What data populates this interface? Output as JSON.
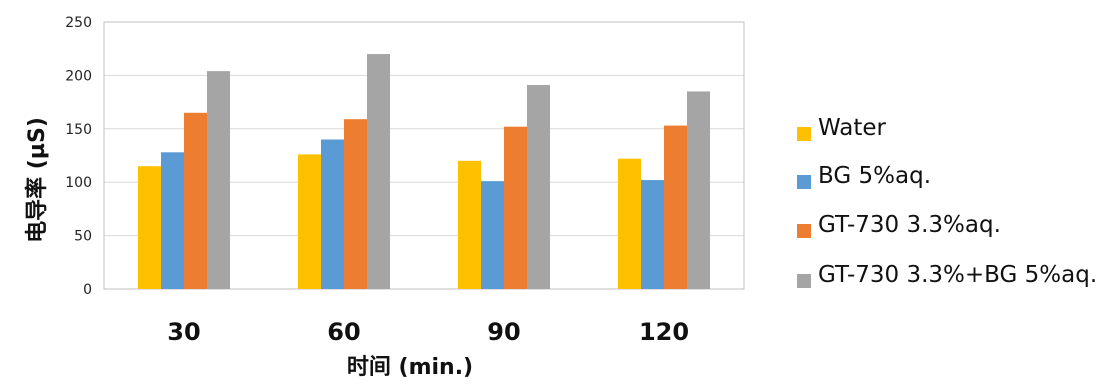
{
  "chart_data": {
    "type": "bar",
    "categories": [
      "30",
      "60",
      "90",
      "120"
    ],
    "series": [
      {
        "name": "Water",
        "color": "#FFC000",
        "values": [
          115,
          126,
          120,
          122
        ]
      },
      {
        "name": "BG 5%aq.",
        "color": "#5B9BD5",
        "values": [
          128,
          140,
          101,
          102
        ]
      },
      {
        "name": "GT-730 3.3%aq.",
        "color": "#ED7D31",
        "values": [
          165,
          159,
          152,
          153
        ]
      },
      {
        "name": "GT-730 3.3%+BG 5%aq.",
        "color": "#A5A5A5",
        "values": [
          204,
          220,
          191,
          185
        ]
      }
    ],
    "ylim": [
      0,
      250
    ],
    "yticks": [
      "0",
      "50",
      "100",
      "150",
      "200",
      "250"
    ],
    "xlabel": "时间 (min.)",
    "ylabel": "电导率 (µS)",
    "grid": true,
    "legend_position": "right"
  }
}
